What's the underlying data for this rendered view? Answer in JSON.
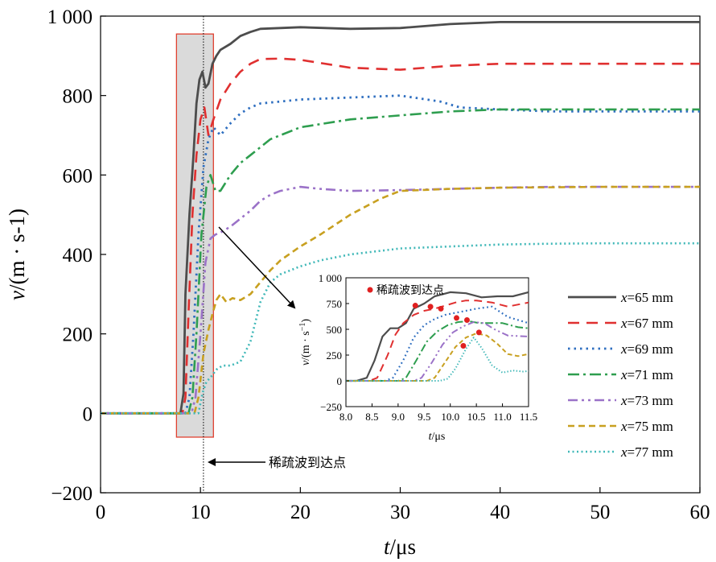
{
  "chart_data": {
    "type": "line",
    "xlabel_var": "t",
    "xlabel_unit": "/μs",
    "ylabel_var": "v",
    "ylabel_unit": "/(m · s-1)",
    "xlim": [
      0,
      60
    ],
    "ylim": [
      -200,
      1000
    ],
    "x_ticks": [
      0,
      10,
      20,
      30,
      40,
      50,
      60
    ],
    "y_ticks": [
      -200,
      0,
      200,
      400,
      600,
      800,
      1000
    ],
    "y_tick_labels": [
      "−200",
      "0",
      "200",
      "400",
      "600",
      "800",
      "1 000"
    ],
    "annotation": "稀疏波到达点",
    "annotation_x": 10.3,
    "highlight_box_x": [
      7.6,
      11.3
    ],
    "highlight_box_y": [
      -60,
      955
    ],
    "series": [
      {
        "name": "x=65 mm",
        "var": "x",
        "label": "=65 mm",
        "color": "#4d4d4d",
        "dash": "",
        "width": 2.8,
        "x": [
          0,
          8,
          8.3,
          8.5,
          8.9,
          9.3,
          9.6,
          9.9,
          10.2,
          10.5,
          10.8,
          11.2,
          11.6,
          12,
          13,
          14,
          15,
          16,
          18,
          20,
          25,
          30,
          35,
          40,
          45,
          50,
          55,
          60
        ],
        "y": [
          0,
          0,
          50,
          300,
          500,
          650,
          780,
          840,
          860,
          820,
          830,
          880,
          900,
          915,
          930,
          950,
          960,
          968,
          970,
          972,
          968,
          970,
          980,
          985,
          985,
          985,
          985,
          985
        ]
      },
      {
        "name": "x=67 mm",
        "var": "x",
        "label": "=67 mm",
        "color": "#e03030",
        "dash": "14,9",
        "width": 2.6,
        "x": [
          0,
          8.2,
          8.5,
          8.8,
          9.2,
          9.6,
          10,
          10.4,
          10.8,
          11.3,
          12,
          13,
          14,
          15,
          16,
          18,
          20,
          25,
          30,
          35,
          40,
          45,
          50,
          55,
          60
        ],
        "y": [
          0,
          0,
          40,
          250,
          500,
          650,
          740,
          770,
          700,
          740,
          790,
          830,
          860,
          880,
          892,
          893,
          890,
          870,
          865,
          875,
          880,
          880,
          880,
          880,
          880
        ]
      },
      {
        "name": "x=69 mm",
        "var": "x",
        "label": "=69 mm",
        "color": "#2f6fc0",
        "dash": "2.5,5",
        "width": 2.8,
        "x": [
          0,
          8.5,
          8.9,
          9.3,
          9.8,
          10.3,
          10.8,
          11.3,
          12,
          13,
          14,
          15,
          16,
          18,
          20,
          25,
          30,
          34,
          36,
          40,
          45,
          50,
          55,
          60
        ],
        "y": [
          0,
          0,
          40,
          200,
          450,
          620,
          690,
          720,
          700,
          730,
          755,
          770,
          780,
          785,
          790,
          795,
          800,
          785,
          770,
          765,
          760,
          760,
          760,
          760
        ]
      },
      {
        "name": "x=71 mm",
        "var": "x",
        "label": "=71 mm",
        "color": "#2e9e4f",
        "dash": "14,5,3,5",
        "width": 2.6,
        "x": [
          0,
          8.8,
          9.2,
          9.6,
          10.1,
          10.6,
          11,
          11.5,
          12,
          13,
          14,
          15,
          16,
          17,
          18,
          20,
          25,
          30,
          35,
          40,
          45,
          50,
          55,
          60
        ],
        "y": [
          0,
          0,
          40,
          200,
          450,
          570,
          600,
          560,
          560,
          600,
          630,
          650,
          670,
          690,
          700,
          720,
          740,
          750,
          760,
          765,
          765,
          765,
          765,
          765
        ]
      },
      {
        "name": "x=73 mm",
        "var": "x",
        "label": "=73 mm",
        "color": "#9b72c8",
        "dash": "12,5,3,5,3,5",
        "width": 2.6,
        "x": [
          0,
          9.1,
          9.5,
          10,
          10.5,
          11,
          11.5,
          12,
          13,
          14,
          15,
          16,
          17,
          18,
          20,
          22,
          25,
          30,
          35,
          40,
          45,
          50,
          55,
          60
        ],
        "y": [
          0,
          0,
          40,
          200,
          380,
          440,
          450,
          455,
          470,
          490,
          510,
          535,
          550,
          560,
          570,
          565,
          560,
          562,
          565,
          568,
          570,
          570,
          570,
          570
        ]
      },
      {
        "name": "x=75 mm",
        "var": "x",
        "label": "=75 mm",
        "color": "#c8a020",
        "dash": "8,5",
        "width": 2.6,
        "x": [
          0,
          9.4,
          9.8,
          10.3,
          10.8,
          11.2,
          11.6,
          12,
          12.6,
          13.2,
          14,
          15,
          16,
          17,
          18,
          20,
          22,
          25,
          28,
          30,
          35,
          40,
          50,
          60
        ],
        "y": [
          0,
          0,
          40,
          150,
          210,
          250,
          285,
          300,
          280,
          290,
          285,
          300,
          330,
          360,
          385,
          420,
          450,
          500,
          540,
          560,
          565,
          568,
          570,
          570
        ]
      },
      {
        "name": "x=77 mm",
        "var": "x",
        "label": "=77 mm",
        "color": "#40b8b8",
        "dash": "2,3.5",
        "width": 2.6,
        "x": [
          0,
          9.8,
          10.2,
          10.6,
          11,
          11.6,
          12.2,
          13,
          14,
          15,
          16,
          17,
          18,
          20,
          22,
          25,
          30,
          35,
          40,
          45,
          50,
          55,
          60
        ],
        "y": [
          0,
          0,
          50,
          80,
          90,
          110,
          120,
          120,
          130,
          180,
          280,
          330,
          350,
          370,
          385,
          400,
          415,
          420,
          425,
          427,
          428,
          428,
          428
        ]
      }
    ],
    "inset": {
      "xlabel_var": "t",
      "xlabel_unit": "/μs",
      "ylabel_var": "v",
      "ylabel_unit": "/(m · s",
      "ylabel_exp": "−1",
      "ylabel_close": ")",
      "xlim": [
        8.0,
        11.5
      ],
      "ylim": [
        -250,
        1000
      ],
      "x_ticks": [
        8.0,
        8.5,
        9.0,
        9.5,
        10.0,
        10.5,
        11.0,
        11.5
      ],
      "x_tick_labels": [
        "8.0",
        "8.5",
        "9.0",
        "9.5",
        "10.0",
        "10.5",
        "11.0",
        "11.5"
      ],
      "y_ticks": [
        -250,
        0,
        250,
        500,
        750,
        1000
      ],
      "y_tick_labels": [
        "−250",
        "0",
        "250",
        "500",
        "750",
        "1 000"
      ],
      "legend_label": "稀疏波到达点",
      "arrival_points": [
        {
          "x": 9.33,
          "y": 730
        },
        {
          "x": 9.62,
          "y": 720
        },
        {
          "x": 9.82,
          "y": 700
        },
        {
          "x": 10.12,
          "y": 610
        },
        {
          "x": 10.32,
          "y": 590
        },
        {
          "x": 10.55,
          "y": 470
        },
        {
          "x": 10.25,
          "y": 340
        }
      ],
      "series": [
        {
          "x": [
            8,
            8.2,
            8.4,
            8.55,
            8.7,
            8.85,
            9.0,
            9.15,
            9.3,
            9.5,
            9.7,
            10.0,
            10.3,
            10.6,
            10.9,
            11.2,
            11.5
          ],
          "y": [
            0,
            0,
            30,
            200,
            430,
            510,
            510,
            560,
            700,
            750,
            820,
            860,
            850,
            810,
            820,
            820,
            860
          ]
        },
        {
          "x": [
            8,
            8.45,
            8.6,
            8.8,
            8.95,
            9.1,
            9.3,
            9.5,
            9.7,
            9.9,
            10.1,
            10.3,
            10.5,
            10.8,
            11.1,
            11.5
          ],
          "y": [
            0,
            0,
            30,
            250,
            450,
            560,
            640,
            680,
            700,
            730,
            760,
            780,
            780,
            760,
            720,
            760
          ]
        },
        {
          "x": [
            8,
            8.75,
            8.9,
            9.1,
            9.3,
            9.5,
            9.7,
            9.9,
            10.1,
            10.3,
            10.5,
            10.8,
            11.1,
            11.5
          ],
          "y": [
            0,
            0,
            30,
            200,
            420,
            540,
            600,
            640,
            660,
            680,
            700,
            720,
            620,
            560
          ]
        },
        {
          "x": [
            8,
            9.0,
            9.15,
            9.35,
            9.55,
            9.75,
            9.95,
            10.15,
            10.35,
            10.55,
            10.75,
            11.0,
            11.3,
            11.5
          ],
          "y": [
            0,
            0,
            30,
            200,
            380,
            480,
            540,
            570,
            580,
            560,
            560,
            560,
            520,
            510
          ]
        },
        {
          "x": [
            8,
            9.3,
            9.45,
            9.65,
            9.85,
            10.05,
            10.25,
            10.45,
            10.65,
            10.85,
            11.1,
            11.5
          ],
          "y": [
            0,
            0,
            30,
            180,
            350,
            470,
            530,
            570,
            560,
            500,
            440,
            430
          ]
        },
        {
          "x": [
            8,
            9.55,
            9.7,
            9.9,
            10.1,
            10.3,
            10.5,
            10.7,
            10.9,
            11.1,
            11.3,
            11.5
          ],
          "y": [
            0,
            0,
            30,
            180,
            330,
            420,
            460,
            440,
            360,
            260,
            240,
            260
          ]
        },
        {
          "x": [
            8,
            9.8,
            9.95,
            10.1,
            10.3,
            10.45,
            10.6,
            10.8,
            11.0,
            11.2,
            11.4,
            11.5
          ],
          "y": [
            0,
            0,
            20,
            120,
            310,
            420,
            320,
            150,
            80,
            100,
            90,
            95
          ]
        }
      ]
    }
  }
}
